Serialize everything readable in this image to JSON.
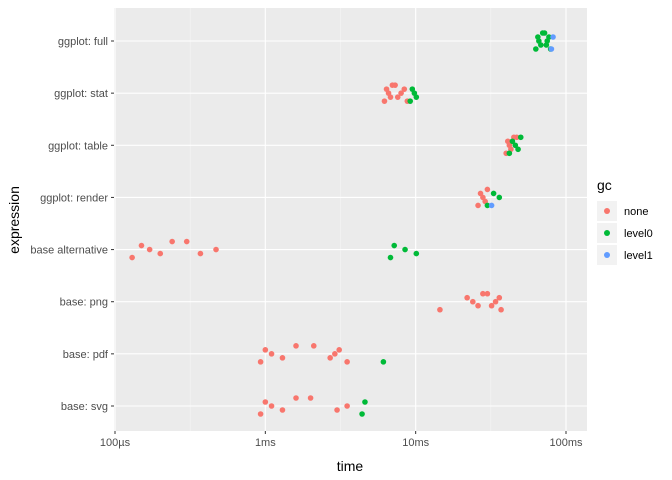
{
  "chart_data": {
    "type": "scatter",
    "title": "",
    "xlabel": "time",
    "ylabel": "expression",
    "x_scale": "log10",
    "xlim": [
      "100µs",
      "100ms"
    ],
    "x_ticks": [
      {
        "label": "100µs",
        "seconds": 0.0001
      },
      {
        "label": "1ms",
        "seconds": 0.001
      },
      {
        "label": "10ms",
        "seconds": 0.01
      },
      {
        "label": "100ms",
        "seconds": 0.1
      }
    ],
    "categories": [
      "ggplot: full",
      "ggplot: stat",
      "ggplot: table",
      "ggplot: render",
      "base alternative",
      "base: png",
      "base: pdf",
      "base: svg"
    ],
    "grid": true,
    "legend": {
      "title": "gc",
      "position": "right",
      "entries": [
        {
          "name": "none",
          "color": "#F8766D"
        },
        {
          "name": "level0",
          "color": "#00BA38"
        },
        {
          "name": "level1",
          "color": "#619CFF"
        }
      ]
    },
    "series": [
      {
        "expression": "ggplot: full",
        "points": [
          {
            "t_ms": [
              63,
              65,
              66,
              68,
              70,
              72,
              74,
              75,
              77,
              79
            ],
            "gc": "level0"
          },
          {
            "t_ms": [
              80,
              82
            ],
            "gc": "level1"
          }
        ]
      },
      {
        "expression": "ggplot: stat",
        "points": [
          {
            "t_ms": [
              6.2,
              6.4,
              6.6,
              6.8,
              7.0,
              7.3,
              7.6,
              8.0,
              8.4,
              8.8
            ],
            "gc": "none"
          },
          {
            "t_ms": [
              9.2,
              9.5,
              9.8,
              10.1
            ],
            "gc": "level0"
          }
        ]
      },
      {
        "expression": "ggplot: table",
        "points": [
          {
            "t_ms": [
              40,
              41,
              42,
              43,
              45,
              47
            ],
            "gc": "none"
          },
          {
            "t_ms": [
              42,
              44,
              46,
              48,
              50
            ],
            "gc": "level0"
          }
        ]
      },
      {
        "expression": "ggplot: render",
        "points": [
          {
            "t_ms": [
              26,
              27,
              28,
              29,
              30
            ],
            "gc": "none"
          },
          {
            "t_ms": [
              30,
              33,
              36
            ],
            "gc": "level0"
          },
          {
            "t_ms": [
              32
            ],
            "gc": "level1"
          }
        ]
      },
      {
        "expression": "base alternative",
        "points": [
          {
            "t_ms": [
              0.13,
              0.15,
              0.17,
              0.2,
              0.24,
              0.3,
              0.37,
              0.47
            ],
            "gc": "none"
          },
          {
            "t_ms": [
              6.8,
              7.2,
              8.5,
              10.1
            ],
            "gc": "level0"
          }
        ]
      },
      {
        "expression": "base: png",
        "points": [
          {
            "t_ms": [
              14.5,
              22,
              24,
              26,
              28,
              30,
              32,
              34,
              36,
              37
            ],
            "gc": "none"
          }
        ]
      },
      {
        "expression": "base: pdf",
        "points": [
          {
            "t_ms": [
              0.93,
              1.0,
              1.1,
              1.3,
              1.6,
              2.1,
              2.7,
              2.9,
              3.1,
              3.5
            ],
            "gc": "none"
          },
          {
            "t_ms": [
              6.1
            ],
            "gc": "level0"
          }
        ]
      },
      {
        "expression": "base: svg",
        "points": [
          {
            "t_ms": [
              0.93,
              1.0,
              1.1,
              1.3,
              1.6,
              2.0,
              3.0,
              3.5
            ],
            "gc": "none"
          },
          {
            "t_ms": [
              4.4,
              4.6
            ],
            "gc": "level0"
          }
        ]
      }
    ]
  }
}
